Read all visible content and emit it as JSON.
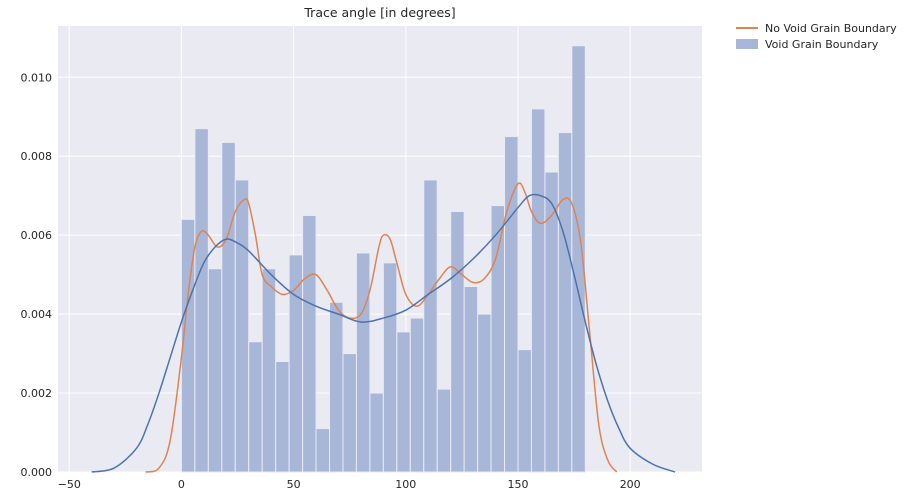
{
  "chart_data": {
    "type": "histogram-kde",
    "title": "Trace angle [in degrees]",
    "xlabel": "",
    "ylabel": "",
    "xlim": [
      -55,
      232
    ],
    "ylim": [
      0,
      0.0113
    ],
    "x_ticks": [
      -50,
      0,
      50,
      100,
      150,
      200
    ],
    "x_tick_labels": [
      "−50",
      "0",
      "50",
      "100",
      "150",
      "200"
    ],
    "y_ticks": [
      0.0,
      0.002,
      0.004,
      0.006,
      0.008,
      0.01
    ],
    "y_tick_labels": [
      "0.000",
      "0.002",
      "0.004",
      "0.006",
      "0.008",
      "0.010"
    ],
    "grid": true,
    "legend_position": "outside-top-right",
    "histogram": {
      "name": "Void Grain Boundary",
      "color": "#a8b7d8",
      "bin_edges": [
        0,
        6,
        12,
        18,
        24,
        30,
        36,
        42,
        48,
        54,
        60,
        66,
        72,
        78,
        84,
        90,
        96,
        102,
        108,
        114,
        120,
        126,
        132,
        138,
        144,
        150,
        156,
        162,
        168,
        174,
        180
      ],
      "densities": [
        0.0064,
        0.0087,
        0.00515,
        0.00835,
        0.0074,
        0.0033,
        0.00515,
        0.0028,
        0.0055,
        0.0065,
        0.0011,
        0.0043,
        0.003,
        0.00555,
        0.002,
        0.0053,
        0.00355,
        0.0039,
        0.0074,
        0.0021,
        0.0066,
        0.0047,
        0.004,
        0.00675,
        0.0085,
        0.0031,
        0.0092,
        0.0076,
        0.0086,
        0.0108
      ]
    },
    "series": [
      {
        "name": "No Void Grain Boundary",
        "color": "#dd8452",
        "x": [
          -16,
          -10,
          -5,
          0,
          3,
          6,
          9,
          12,
          16,
          20,
          24,
          28,
          30,
          33,
          36,
          40,
          45,
          50,
          55,
          60,
          65,
          70,
          75,
          80,
          84,
          88,
          90,
          93,
          96,
          100,
          105,
          110,
          115,
          120,
          125,
          130,
          135,
          140,
          145,
          150,
          153,
          156,
          160,
          165,
          170,
          174,
          178,
          182,
          186,
          190,
          194
        ],
        "y": [
          0.0,
          0.0001,
          0.0008,
          0.0029,
          0.0045,
          0.0057,
          0.0061,
          0.006,
          0.0057,
          0.0059,
          0.0066,
          0.0069,
          0.0068,
          0.006,
          0.005,
          0.0047,
          0.0045,
          0.0046,
          0.0049,
          0.005,
          0.0046,
          0.0041,
          0.0039,
          0.004,
          0.0046,
          0.0057,
          0.006,
          0.0059,
          0.0053,
          0.0045,
          0.0042,
          0.0045,
          0.0049,
          0.0052,
          0.005,
          0.0048,
          0.0049,
          0.0054,
          0.0066,
          0.0073,
          0.0071,
          0.0066,
          0.0063,
          0.0065,
          0.0069,
          0.0068,
          0.0058,
          0.0035,
          0.0012,
          0.0003,
          0.0
        ]
      },
      {
        "name": "",
        "color": "#4c72b0",
        "x": [
          -40,
          -30,
          -20,
          -15,
          -10,
          -5,
          0,
          5,
          10,
          15,
          20,
          25,
          30,
          40,
          50,
          60,
          70,
          80,
          90,
          100,
          110,
          120,
          130,
          140,
          150,
          155,
          160,
          165,
          170,
          175,
          180,
          185,
          190,
          195,
          200,
          210,
          220
        ],
        "y": [
          0.0,
          0.0001,
          0.0006,
          0.0012,
          0.002,
          0.0029,
          0.0038,
          0.0046,
          0.0053,
          0.0057,
          0.0059,
          0.0058,
          0.0056,
          0.005,
          0.0045,
          0.0042,
          0.004,
          0.0038,
          0.0039,
          0.0041,
          0.0045,
          0.0049,
          0.0054,
          0.006,
          0.0067,
          0.007,
          0.007,
          0.0068,
          0.0061,
          0.005,
          0.0038,
          0.0027,
          0.0018,
          0.0011,
          0.0006,
          0.0002,
          0.0
        ]
      }
    ],
    "legend_entries": [
      {
        "label": "No Void Grain Boundary",
        "kind": "line",
        "color": "#dd8452"
      },
      {
        "label": "Void Grain Boundary",
        "kind": "patch",
        "color": "#a8b7d8"
      }
    ]
  }
}
